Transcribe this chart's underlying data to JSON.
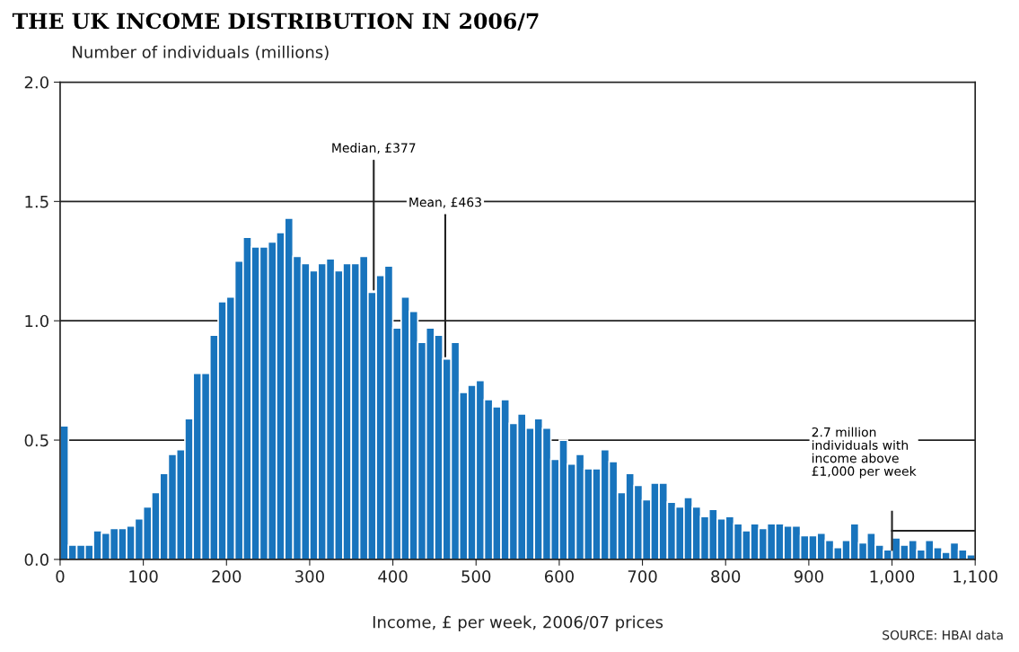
{
  "chart_data": {
    "type": "histogram",
    "title": "THE UK INCOME DISTRIBUTION IN 2006/7",
    "ylabel": "Number of individuals (millions)",
    "xlabel": "Income, £ per week, 2006/07 prices",
    "bins": [
      0,
      10,
      20,
      30,
      40,
      50,
      60,
      70,
      80,
      90,
      100,
      110,
      120,
      130,
      140,
      150,
      160,
      170,
      180,
      190,
      200,
      210,
      220,
      230,
      240,
      250,
      260,
      270,
      280,
      290,
      300,
      310,
      320,
      330,
      340,
      350,
      360,
      370,
      380,
      390,
      400,
      410,
      420,
      430,
      440,
      450,
      460,
      470,
      480,
      490,
      500,
      510,
      520,
      530,
      540,
      550,
      560,
      570,
      580,
      590,
      600,
      610,
      620,
      630,
      640,
      650,
      660,
      670,
      680,
      690,
      700,
      710,
      720,
      730,
      740,
      750,
      760,
      770,
      780,
      790,
      800,
      810,
      820,
      830,
      840,
      850,
      860,
      870,
      880,
      890,
      900,
      910,
      920,
      930,
      940,
      950,
      960,
      970,
      980,
      990,
      1000,
      1010,
      1020,
      1030,
      1040,
      1050,
      1060,
      1070,
      1080,
      1090,
      1100
    ],
    "values": [
      0.56,
      0.06,
      0.06,
      0.06,
      0.12,
      0.11,
      0.13,
      0.13,
      0.14,
      0.17,
      0.22,
      0.28,
      0.36,
      0.44,
      0.46,
      0.59,
      0.78,
      0.78,
      0.94,
      1.08,
      1.1,
      1.25,
      1.35,
      1.31,
      1.31,
      1.33,
      1.37,
      1.43,
      1.27,
      1.24,
      1.21,
      1.24,
      1.26,
      1.21,
      1.24,
      1.24,
      1.27,
      1.12,
      1.19,
      1.23,
      0.97,
      1.1,
      1.04,
      0.91,
      0.97,
      0.94,
      0.84,
      0.91,
      0.7,
      0.73,
      0.75,
      0.67,
      0.64,
      0.67,
      0.57,
      0.61,
      0.55,
      0.59,
      0.55,
      0.42,
      0.5,
      0.4,
      0.44,
      0.38,
      0.38,
      0.46,
      0.41,
      0.28,
      0.36,
      0.31,
      0.25,
      0.32,
      0.32,
      0.24,
      0.22,
      0.26,
      0.22,
      0.18,
      0.21,
      0.17,
      0.18,
      0.15,
      0.12,
      0.15,
      0.13,
      0.15,
      0.15,
      0.14,
      0.14,
      0.1,
      0.1,
      0.11,
      0.08,
      0.05,
      0.08,
      0.15,
      0.07,
      0.11,
      0.06,
      0.04,
      0.09,
      0.06,
      0.08,
      0.04,
      0.08,
      0.05,
      0.03,
      0.07,
      0.04,
      0.02
    ],
    "color": "#1874bd",
    "xlim": [
      0,
      1100
    ],
    "xticks": [
      0,
      100,
      200,
      300,
      400,
      500,
      600,
      700,
      800,
      900,
      {
        "value": 1000,
        "label": "1,000"
      },
      {
        "value": 1100,
        "label": "1,100"
      }
    ],
    "ylim": [
      0,
      2.0
    ],
    "yticks": [
      {
        "value": 0,
        "label": "0.0"
      },
      {
        "value": 0.5,
        "label": "0.5"
      },
      {
        "value": 1.0,
        "label": "1.0"
      },
      {
        "value": 1.5,
        "label": "1.5"
      },
      {
        "value": 2.0,
        "label": "2.0"
      }
    ],
    "grid": "y",
    "annotations": [
      {
        "text": "Median, £377",
        "x": 377,
        "y": 1.12
      },
      {
        "text": "Mean, £463",
        "x": 463,
        "y": 0.84
      },
      "2.7 million\nindividuals with\nincome above\n£1,000 per week",
      "SOURCE: HBAI data"
    ]
  }
}
